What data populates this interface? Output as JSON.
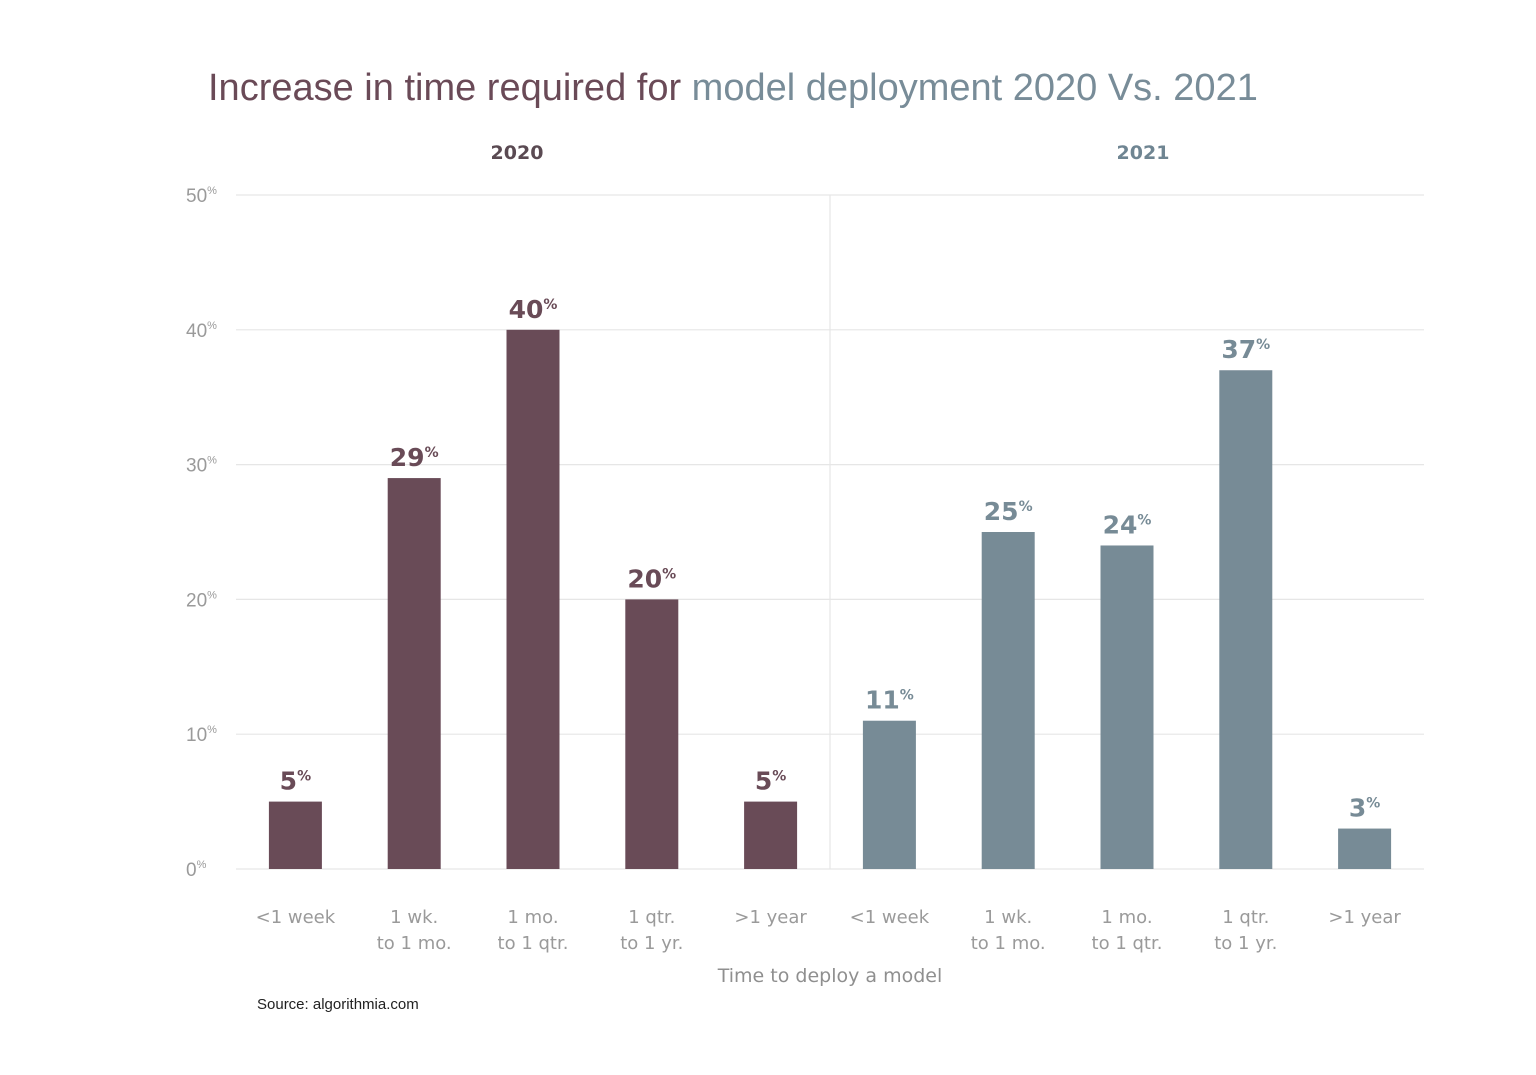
{
  "title": {
    "part1": "Increase in time required for ",
    "part2": "model deployment 2020 Vs. 2021"
  },
  "colors": {
    "title_part1": "#6a4a57",
    "title_part2": "#788c98",
    "series_2020": "#694b57",
    "series_2021": "#778b96",
    "grid": "#e6e6e6",
    "divider": "#e6e6e6"
  },
  "source": "Source: algorithmia.com",
  "chart_data": {
    "type": "bar",
    "title": "Increase in time required for model deployment 2020 Vs. 2021",
    "xlabel": "Time to deploy a model",
    "ylabel": "",
    "ylim": [
      0,
      50
    ],
    "yticks": [
      0,
      10,
      20,
      30,
      40,
      50
    ],
    "ytick_suffix": "%",
    "value_suffix": "%",
    "grid": true,
    "panels": [
      {
        "title": "2020",
        "categories": [
          "<1 week",
          "1 wk.\nto 1 mo.",
          "1 mo.\nto 1 qtr.",
          "1 qtr.\nto 1 yr.",
          ">1 year"
        ],
        "values": [
          5,
          29,
          40,
          20,
          5
        ],
        "color": "#694b57"
      },
      {
        "title": "2021",
        "categories": [
          "<1 week",
          "1 wk.\nto 1 mo.",
          "1 mo.\nto 1 qtr.",
          "1 qtr.\nto 1 yr.",
          ">1 year"
        ],
        "values": [
          11,
          25,
          24,
          37,
          3
        ],
        "color": "#778b96"
      }
    ]
  }
}
